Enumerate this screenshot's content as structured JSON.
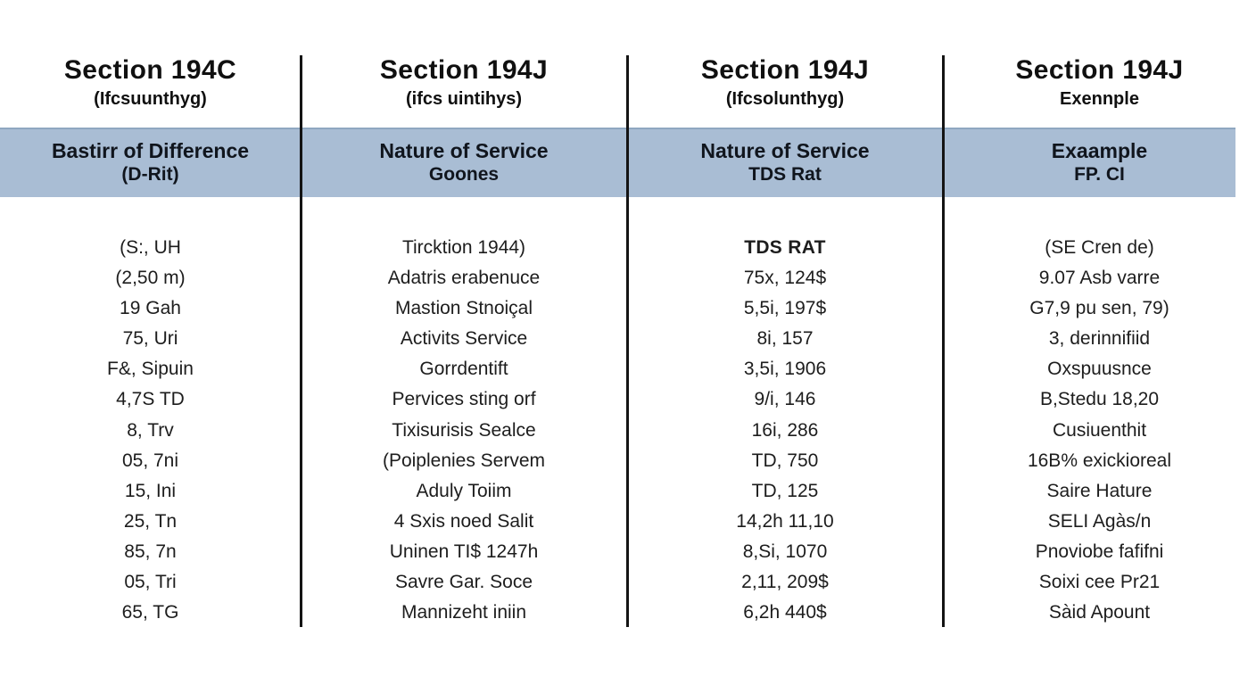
{
  "chart_data": {
    "type": "table",
    "title": "Section 194C vs Section 194J comparison table",
    "columns": [
      {
        "title": "Section 194C",
        "subtitle": "(Ifcsuunthyg)",
        "header_line1": "Bastirr of Difference",
        "header_line2": "(D-Rit)",
        "rows": [
          "(S:, UH",
          "(2,50 m)",
          "19 Gah",
          "75, Uri",
          "F&, Sipuin",
          "4,7S TD",
          "8, Trv",
          "05, 7ni",
          "15, Ini",
          "25, Tn",
          "85, 7n",
          "05, Tri",
          "65, TG"
        ]
      },
      {
        "title": "Section 194J",
        "subtitle": "(ifcs uintihys)",
        "header_line1": "Nature of Service",
        "header_line2": "Goones",
        "rows": [
          "Tircktion 1944)",
          "Adatris erabenuce",
          "Mastion Stnoiçal",
          "Activits Service",
          "Gorrdentift",
          "Pervices sting orf",
          "Tixisurisis Sealce",
          "(Poiplenies Servem",
          "Aduly Toiim",
          "4 Sxis noed Salit",
          "Uninen TI$ 1247h",
          "Savre Gar. Soce",
          "Mannizeht iniin"
        ]
      },
      {
        "title": "Section 194J",
        "subtitle": "(Ifcsolunthyg)",
        "header_line1": "Nature of Service",
        "header_line2": "TDS Rat",
        "rows": [
          "TDS RAT",
          "75x, 124$",
          "5,5i, 197$",
          "8i, 157",
          "3,5i, 1906",
          "9/i, 146",
          "16i, 286",
          "TD, 750",
          "TD, 125",
          "14,2h 11,10",
          "8,Si, 1070",
          "2,11, 209$",
          "6,2h 440$"
        ]
      },
      {
        "title": "Section 194J",
        "subtitle": "Exennple",
        "header_line1": "Exaample",
        "header_line2": "FP. CI",
        "rows": [
          "(SE Cren de)",
          "9.07 Asb varre",
          "G7,9 pu sen, 79)",
          "3, derinnifiid",
          "Oxspuusnce",
          "B,Stedu 18,20",
          "Cusiuenthit",
          "16B% exickioreal",
          "Saire Hature",
          "SELI Agàs/n",
          "Pnoviobe fafifni",
          "Soixi cee Pr21",
          "Sàid Apount"
        ]
      }
    ],
    "layout": {
      "header_band_color": "#a9bdd4",
      "divider_color": "#141414",
      "text_color": "#1d1d1d",
      "background_color": "#ffffff",
      "grid": "vertical dividers only"
    }
  }
}
